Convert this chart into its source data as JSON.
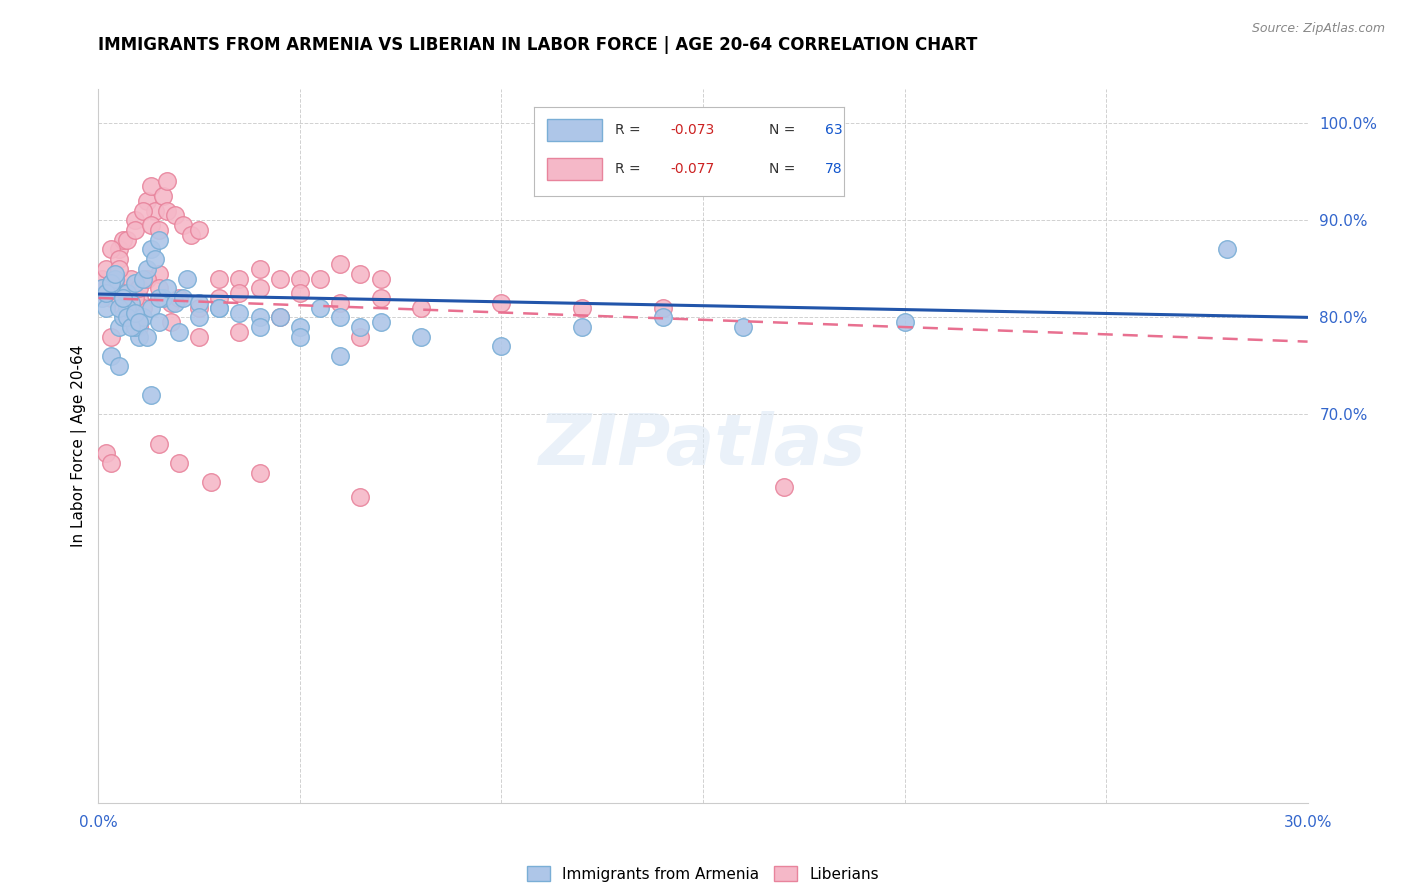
{
  "title": "IMMIGRANTS FROM ARMENIA VS LIBERIAN IN LABOR FORCE | AGE 20-64 CORRELATION CHART",
  "source": "Source: ZipAtlas.com",
  "ylabel": "In Labor Force | Age 20-64",
  "xlim": [
    0.0,
    0.3
  ],
  "ylim": [
    0.3,
    1.035
  ],
  "xticks": [
    0.0,
    0.05,
    0.1,
    0.15,
    0.2,
    0.25,
    0.3
  ],
  "xticklabels": [
    "0.0%",
    "",
    "",
    "",
    "",
    "",
    "30.0%"
  ],
  "ytick_positions": [
    0.7,
    0.8,
    0.9,
    1.0
  ],
  "ytick_labels": [
    "70.0%",
    "80.0%",
    "90.0%",
    "100.0%"
  ],
  "armenia_color": "#aec6e8",
  "armenia_edge": "#7aaed6",
  "liberia_color": "#f5b8c8",
  "liberia_edge": "#e8849c",
  "armenia_line_color": "#2255aa",
  "liberia_line_color": "#e87090",
  "watermark": "ZIPatlas",
  "legend_R_color": "#cc2222",
  "legend_N_color": "#1155cc",
  "armenia_line_x0": 0.0,
  "armenia_line_y0": 0.824,
  "armenia_line_x1": 0.3,
  "armenia_line_y1": 0.8,
  "liberia_line_x0": 0.0,
  "liberia_line_y0": 0.82,
  "liberia_line_x1": 0.3,
  "liberia_line_y1": 0.775,
  "armenia_pts_x": [
    0.001,
    0.002,
    0.003,
    0.004,
    0.005,
    0.006,
    0.007,
    0.008,
    0.009,
    0.01,
    0.011,
    0.012,
    0.013,
    0.014,
    0.015,
    0.016,
    0.003,
    0.005,
    0.007,
    0.009,
    0.011,
    0.013,
    0.015,
    0.017,
    0.019,
    0.021,
    0.025,
    0.03,
    0.035,
    0.04,
    0.045,
    0.05,
    0.055,
    0.06,
    0.065,
    0.07,
    0.001,
    0.002,
    0.003,
    0.004,
    0.005,
    0.006,
    0.007,
    0.008,
    0.009,
    0.01,
    0.012,
    0.015,
    0.02,
    0.025,
    0.03,
    0.04,
    0.05,
    0.06,
    0.08,
    0.1,
    0.12,
    0.14,
    0.16,
    0.2,
    0.013,
    0.022,
    0.28
  ],
  "armenia_pts_y": [
    0.82,
    0.81,
    0.83,
    0.84,
    0.79,
    0.8,
    0.825,
    0.815,
    0.835,
    0.78,
    0.84,
    0.85,
    0.87,
    0.86,
    0.88,
    0.82,
    0.76,
    0.75,
    0.81,
    0.79,
    0.8,
    0.81,
    0.82,
    0.83,
    0.815,
    0.82,
    0.815,
    0.81,
    0.805,
    0.8,
    0.8,
    0.79,
    0.81,
    0.8,
    0.79,
    0.795,
    0.83,
    0.825,
    0.835,
    0.845,
    0.81,
    0.82,
    0.8,
    0.79,
    0.805,
    0.795,
    0.78,
    0.795,
    0.785,
    0.8,
    0.81,
    0.79,
    0.78,
    0.76,
    0.78,
    0.77,
    0.79,
    0.8,
    0.79,
    0.795,
    0.72,
    0.84,
    0.87
  ],
  "liberia_pts_x": [
    0.001,
    0.002,
    0.003,
    0.004,
    0.005,
    0.006,
    0.007,
    0.008,
    0.009,
    0.01,
    0.011,
    0.012,
    0.013,
    0.014,
    0.015,
    0.016,
    0.017,
    0.018,
    0.003,
    0.005,
    0.007,
    0.009,
    0.011,
    0.013,
    0.015,
    0.017,
    0.019,
    0.021,
    0.023,
    0.025,
    0.03,
    0.035,
    0.04,
    0.045,
    0.05,
    0.055,
    0.06,
    0.065,
    0.07,
    0.001,
    0.002,
    0.003,
    0.004,
    0.005,
    0.006,
    0.007,
    0.008,
    0.009,
    0.01,
    0.012,
    0.015,
    0.02,
    0.025,
    0.03,
    0.035,
    0.04,
    0.05,
    0.06,
    0.07,
    0.08,
    0.1,
    0.12,
    0.14,
    0.003,
    0.01,
    0.018,
    0.025,
    0.035,
    0.045,
    0.065,
    0.002,
    0.003,
    0.015,
    0.02,
    0.028,
    0.04,
    0.065,
    0.17
  ],
  "liberia_pts_y": [
    0.84,
    0.85,
    0.82,
    0.83,
    0.87,
    0.88,
    0.83,
    0.84,
    0.9,
    0.82,
    0.81,
    0.92,
    0.935,
    0.91,
    0.845,
    0.925,
    0.94,
    0.815,
    0.87,
    0.86,
    0.88,
    0.89,
    0.91,
    0.895,
    0.89,
    0.91,
    0.905,
    0.895,
    0.885,
    0.89,
    0.84,
    0.84,
    0.85,
    0.84,
    0.84,
    0.84,
    0.855,
    0.845,
    0.84,
    0.83,
    0.825,
    0.835,
    0.84,
    0.85,
    0.81,
    0.82,
    0.8,
    0.82,
    0.83,
    0.84,
    0.83,
    0.82,
    0.81,
    0.82,
    0.825,
    0.83,
    0.825,
    0.815,
    0.82,
    0.81,
    0.815,
    0.81,
    0.81,
    0.78,
    0.79,
    0.795,
    0.78,
    0.785,
    0.8,
    0.78,
    0.66,
    0.65,
    0.67,
    0.65,
    0.63,
    0.64,
    0.615,
    0.625
  ]
}
